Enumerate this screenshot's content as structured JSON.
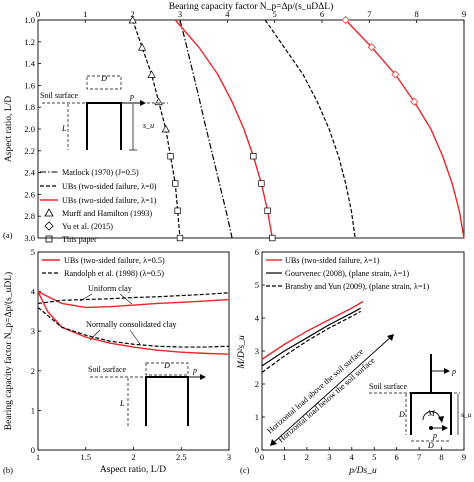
{
  "chart_data": [
    {
      "panel": "(a)",
      "type": "line",
      "xlabel": "Bearing capacity factor N_p=Δp/(s_uDΔL)",
      "ylabel": "Aspect ratio, L/D",
      "xlim": [
        0,
        9
      ],
      "ylim": [
        1,
        3
      ],
      "y_reversed": true,
      "x_axis_position": "top",
      "x_ticks": [
        0,
        1,
        2,
        3,
        4,
        5,
        6,
        7,
        8,
        9
      ],
      "y_ticks": [
        1,
        1.2,
        1.4,
        1.6,
        1.8,
        2,
        2.2,
        2.4,
        2.6,
        2.8,
        3
      ],
      "series": [
        {
          "name": "Matlock (1970) (J=0.5)",
          "style": "dash-dot",
          "color": "#000000",
          "x": [
            3.0,
            3.1,
            3.2,
            3.3,
            3.4,
            3.5,
            3.6,
            3.7,
            3.8,
            3.9,
            4.0,
            4.1
          ],
          "y": [
            1.0,
            1.17,
            1.35,
            1.53,
            1.71,
            1.9,
            2.08,
            2.26,
            2.44,
            2.62,
            2.8,
            3.0
          ]
        },
        {
          "name": "UBs (two-sided failure, λ=0)",
          "style": "dashed",
          "color": "#000000",
          "x": [
            2.0,
            2.2,
            2.4,
            2.55,
            2.7,
            2.8,
            2.9,
            2.95,
            3.0
          ],
          "y": [
            1.0,
            1.25,
            1.5,
            1.75,
            2.0,
            2.25,
            2.5,
            2.75,
            3.0
          ]
        },
        {
          "name": "UBs (two-sided failure, λ=0)",
          "style": "dashed",
          "color": "#000000",
          "x": [
            4.8,
            5.2,
            5.6,
            5.9,
            6.15,
            6.35,
            6.5,
            6.62,
            6.7
          ],
          "y": [
            1.0,
            1.25,
            1.5,
            1.75,
            2.0,
            2.25,
            2.5,
            2.75,
            3.0
          ]
        },
        {
          "name": "UBs (two-sided failure, λ=1)",
          "style": "solid",
          "color": "#e8262a",
          "x": [
            2.9,
            3.4,
            3.8,
            4.1,
            4.35,
            4.55,
            4.72,
            4.85,
            4.95
          ],
          "y": [
            1.0,
            1.25,
            1.5,
            1.75,
            2.0,
            2.25,
            2.5,
            2.75,
            3.0
          ]
        },
        {
          "name": "UBs (two-sided failure, λ=1)",
          "style": "solid",
          "color": "#e8262a",
          "x": [
            6.5,
            7.05,
            7.55,
            7.95,
            8.3,
            8.55,
            8.75,
            8.9,
            9.0
          ],
          "y": [
            1.0,
            1.25,
            1.5,
            1.75,
            2.0,
            2.25,
            2.5,
            2.75,
            3.0
          ]
        }
      ],
      "markers": [
        {
          "name": "Murff and Hamilton (1993)",
          "symbol": "triangle",
          "x": [
            2.0,
            2.2,
            2.4,
            2.55,
            2.7
          ],
          "y": [
            1.0,
            1.25,
            1.5,
            1.75,
            2.0
          ]
        },
        {
          "name": "Yu et al. (2015)",
          "symbol": "diamond",
          "x": [
            6.5,
            7.05,
            7.55,
            7.95
          ],
          "y": [
            1.0,
            1.25,
            1.5,
            1.75
          ]
        },
        {
          "name": "This paper",
          "symbol": "square",
          "x": [
            2.8,
            2.9,
            2.95,
            3.0,
            4.55,
            4.72,
            4.85,
            4.95
          ],
          "y": [
            2.25,
            2.5,
            2.75,
            3.0,
            2.25,
            2.5,
            2.75,
            3.0
          ]
        }
      ],
      "legend": [
        "Matlock (1970) (J=0.5)",
        "UBs (two-sided failure, λ=0)",
        "UBs (two-sided failure, λ=1)",
        "Murff and Hamilton (1993)",
        "Yu et al. (2015)",
        "This paper"
      ],
      "inset_labels": {
        "soil_surface": "Soil surface",
        "D": "D",
        "p": "p",
        "L": "L",
        "s_u": "s_u"
      }
    },
    {
      "panel": "(b)",
      "type": "line",
      "xlabel": "Aspect ratio, L/D",
      "ylabel": "Bearing capacity factor N_p=Δp/(s_uDL)",
      "xlim": [
        1,
        3
      ],
      "ylim": [
        0,
        5
      ],
      "x_ticks": [
        1,
        1.5,
        2,
        2.5,
        3
      ],
      "y_ticks": [
        0,
        1,
        2,
        3,
        4,
        5
      ],
      "series": [
        {
          "name": "UBs (two-sided failure, λ=0.5)",
          "style": "solid",
          "color": "#e8262a",
          "x": [
            1.0,
            1.25,
            1.5,
            1.75,
            2.0,
            2.25,
            2.5,
            2.75,
            3.0
          ],
          "y": [
            4.0,
            3.7,
            3.6,
            3.62,
            3.66,
            3.7,
            3.73,
            3.76,
            3.8
          ]
        },
        {
          "name": "UBs (two-sided failure, λ=0.5)",
          "style": "solid",
          "color": "#e8262a",
          "x": [
            1.0,
            1.1,
            1.25,
            1.5,
            1.75,
            2.0,
            2.25,
            2.5,
            2.75,
            3.0
          ],
          "y": [
            4.0,
            3.5,
            3.1,
            2.85,
            2.7,
            2.6,
            2.52,
            2.47,
            2.44,
            2.42
          ]
        },
        {
          "name": "Randolph et al. (1998) (λ=0.5)",
          "style": "dashed",
          "color": "#000000",
          "x": [
            1.0,
            1.25,
            1.5,
            1.75,
            2.0,
            2.25,
            2.5,
            2.75,
            3.0
          ],
          "y": [
            3.7,
            3.78,
            3.8,
            3.82,
            3.85,
            3.87,
            3.9,
            3.93,
            3.97
          ]
        },
        {
          "name": "Randolph et al. (1998) (λ=0.5)",
          "style": "dashed",
          "color": "#000000",
          "x": [
            1.0,
            1.25,
            1.5,
            1.75,
            2.0,
            2.25,
            2.5,
            2.75,
            3.0
          ],
          "y": [
            3.6,
            3.1,
            2.9,
            2.75,
            2.67,
            2.62,
            2.6,
            2.6,
            2.62
          ]
        }
      ],
      "legend": [
        "UBs (two-sided failure, λ=0.5)",
        "Randolph et al. (1998) (λ=0.5)"
      ],
      "annotations": [
        "Uniform clay",
        "Normally consolidated clay"
      ],
      "inset_labels": {
        "soil_surface": "Soil surface",
        "D": "D",
        "p": "p",
        "L": "L"
      }
    },
    {
      "panel": "(c)",
      "type": "line",
      "xlabel": "p/Ds_u",
      "ylabel": "M/D²s_u",
      "xlim": [
        0,
        9
      ],
      "ylim": [
        0,
        6
      ],
      "x_ticks": [
        0,
        1,
        2,
        3,
        4,
        5,
        6,
        7,
        8,
        9
      ],
      "y_ticks": [
        0,
        1,
        2,
        3,
        4,
        5,
        6
      ],
      "series": [
        {
          "name": "UBs (two-sided failure, λ=1)",
          "style": "solid",
          "color": "#e8262a",
          "x": [
            0.0,
            1.0,
            2.0,
            3.0,
            4.0,
            4.5
          ],
          "y": [
            2.75,
            3.2,
            3.6,
            3.95,
            4.3,
            4.5
          ]
        },
        {
          "name": "Gourvenec (2008), (plane strain, λ=1)",
          "style": "solid",
          "color": "#000000",
          "x": [
            0.0,
            1.0,
            2.0,
            3.0,
            4.0,
            4.4
          ],
          "y": [
            2.55,
            3.0,
            3.4,
            3.8,
            4.15,
            4.3
          ]
        },
        {
          "name": "Bransby and Yun (2009), (plane strain, λ=1)",
          "style": "dashed",
          "color": "#000000",
          "x": [
            0.0,
            1.0,
            2.0,
            3.0,
            4.0,
            4.4
          ],
          "y": [
            2.35,
            2.85,
            3.3,
            3.7,
            4.05,
            4.2
          ]
        }
      ],
      "legend": [
        "UBs (two-sided failure, λ=1)",
        "Gourvenec (2008), (plane strain, λ=1)",
        "Bransby and Yun (2009), (plane strain, λ=1)"
      ],
      "annotations": [
        "Horizontal load above the soil surface",
        "Horizontal load below the soil surface"
      ],
      "inset_labels": {
        "soil_surface": "Soil surface",
        "D": "D",
        "p": "p",
        "M": "M",
        "s_u": "s_u"
      }
    }
  ]
}
